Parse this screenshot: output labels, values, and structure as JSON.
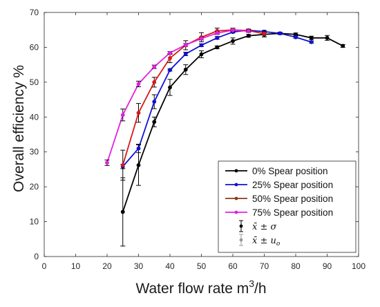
{
  "chart_data": {
    "type": "line",
    "xlabel": "Water flow rate m",
    "xlabel_sup": "3",
    "xlabel_suffix": "/h",
    "ylabel": "Overall efficiency %",
    "xlim": [
      0,
      100
    ],
    "ylim": [
      0,
      70
    ],
    "xticks": [
      0,
      10,
      20,
      30,
      40,
      50,
      60,
      70,
      80,
      90,
      100
    ],
    "yticks": [
      0,
      10,
      20,
      30,
      40,
      50,
      60,
      70
    ],
    "grid": false,
    "legend_position": "bottom-right",
    "series": [
      {
        "name": "0% Spear position",
        "color": "#000000",
        "x": [
          25,
          30,
          35,
          40,
          45,
          50,
          55,
          60,
          65,
          70,
          75,
          80,
          85,
          90,
          95
        ],
        "y": [
          12.8,
          26.2,
          38.6,
          48.5,
          53.6,
          58.0,
          60.0,
          61.8,
          63.3,
          63.7,
          64.0,
          63.7,
          62.7,
          62.7,
          60.4
        ],
        "err": [
          9.8,
          5.8,
          1.4,
          2.3,
          1.4,
          1.0,
          0.4,
          0.9,
          0.4,
          0.7,
          0.3,
          0.4,
          0.5,
          0.7,
          0.4
        ]
      },
      {
        "name": "25% Spear position",
        "color": "#1010d8",
        "x": [
          25,
          30,
          35,
          40,
          45,
          50,
          55,
          60,
          65,
          70,
          75,
          80,
          85
        ],
        "y": [
          25.8,
          31.0,
          44.4,
          53.5,
          58.1,
          60.6,
          62.7,
          64.4,
          64.9,
          64.5,
          64.0,
          62.9,
          61.5
        ],
        "err": [
          0.6,
          1.2,
          2.0,
          0.3,
          0.5,
          0.4,
          0.4,
          0.3,
          0.3,
          0.3,
          0.3,
          0.3,
          0.3
        ]
      },
      {
        "name": "50% Spear position",
        "color": "#d81818",
        "x": [
          25,
          30,
          35,
          40,
          45,
          50,
          55,
          60,
          65,
          70
        ],
        "y": [
          26.2,
          41.2,
          50.0,
          56.9,
          60.6,
          62.9,
          64.7,
          65.0,
          64.8,
          63.9
        ],
        "err": [
          4.3,
          2.7,
          1.4,
          1.3,
          1.3,
          1.3,
          0.8,
          0.5,
          0.4,
          0.9
        ]
      },
      {
        "name": "75% Spear position",
        "color": "#e020e0",
        "x": [
          20,
          25,
          30,
          35,
          40,
          45,
          50,
          55,
          60,
          65
        ],
        "y": [
          26.9,
          40.6,
          49.5,
          54.4,
          58.4,
          60.7,
          62.5,
          64.1,
          64.9,
          64.6
        ],
        "err": [
          0.8,
          1.7,
          0.8,
          0.5,
          0.4,
          0.4,
          0.4,
          0.4,
          0.3,
          0.3
        ]
      }
    ],
    "legend": [
      {
        "kind": "line",
        "label": "0% Spear position",
        "color": "#000000"
      },
      {
        "kind": "line",
        "label": "25% Spear position",
        "color": "#1010d8"
      },
      {
        "kind": "line",
        "label": "50% Spear position",
        "color": "#8a3a1a"
      },
      {
        "kind": "line",
        "label": "75% Spear position",
        "color": "#e020e0"
      },
      {
        "kind": "errorbar",
        "label": "x̄ ± σ",
        "color": "#000000"
      },
      {
        "kind": "errorbar",
        "label": "x̄ ± u",
        "sub": "o",
        "color": "#999999"
      }
    ]
  }
}
